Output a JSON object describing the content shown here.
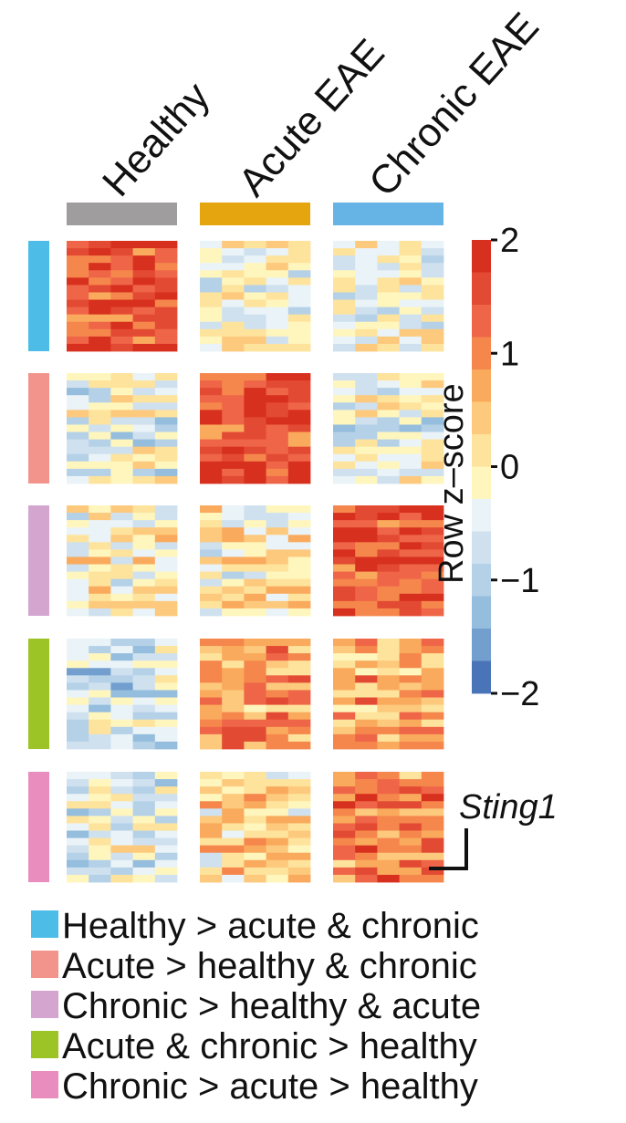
{
  "chart_data": {
    "type": "heatmap",
    "title": "",
    "columns": [
      {
        "name": "Healthy",
        "color": "#A09D9E"
      },
      {
        "name": "Acute EAE",
        "color": "#E5A50E"
      },
      {
        "name": "Chronic EAE",
        "color": "#66B4E5"
      }
    ],
    "replicates_per_column": 5,
    "rows_per_cluster": 15,
    "colorbar": {
      "title": "Row z–score",
      "range": [
        -2,
        2
      ],
      "ticks": [
        {
          "value": 2,
          "label": "2"
        },
        {
          "value": 1,
          "label": "1"
        },
        {
          "value": 0,
          "label": "0"
        },
        {
          "value": -1,
          "label": "−1"
        },
        {
          "value": -2,
          "label": "−2"
        }
      ],
      "colors": [
        "#D7301F",
        "#E34A33",
        "#EF6548",
        "#F5874C",
        "#FAAA5C",
        "#FDC97D",
        "#FEE39C",
        "#FFF6BE",
        "#EAF3F7",
        "#CFE1EF",
        "#B5D1E8",
        "#95BDDD",
        "#739FCE",
        "#4A74B8"
      ]
    },
    "clusters": [
      {
        "label": "Healthy > acute & chronic",
        "color": "#4DBDE8",
        "means": [
          1.4,
          -0.2,
          -0.2
        ]
      },
      {
        "label": "Acute > healthy & chronic",
        "color": "#F2948C",
        "means": [
          -0.4,
          1.6,
          -0.3
        ]
      },
      {
        "label": "Chronic > healthy & acute",
        "color": "#D3A5CF",
        "means": [
          -0.2,
          -0.1,
          1.5
        ]
      },
      {
        "label": "Acute & chronic > healthy",
        "color": "#9DC427",
        "means": [
          -0.6,
          0.9,
          0.7
        ]
      },
      {
        "label": "Chronic > acute > healthy",
        "color": "#E88DBD",
        "means": [
          -0.5,
          0.3,
          1.2
        ]
      }
    ],
    "annotation": {
      "gene": "Sting1",
      "cluster": 5
    }
  }
}
